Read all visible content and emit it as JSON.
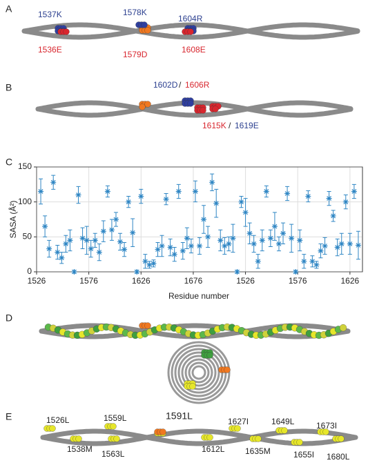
{
  "panel_a": {
    "label": "A",
    "labels": [
      "1537K",
      "1578K",
      "1604R",
      "1536E",
      "1579D",
      "1608E"
    ]
  },
  "panel_b": {
    "label": "B",
    "labels": [
      "1602D",
      "/",
      "1606R",
      "1615K",
      "/",
      "1619E"
    ]
  },
  "chart_data": {
    "type": "scatter",
    "panel_label": "C",
    "x_label": "Residue number",
    "y_label": "SASA (Å²)",
    "xlim": [
      0,
      312
    ],
    "ylim": [
      0,
      150
    ],
    "xticks": [
      {
        "value": 0,
        "label": "1526"
      },
      {
        "value": 50,
        "label": "1576"
      },
      {
        "value": 100,
        "label": "1626"
      },
      {
        "value": 150,
        "label": "1676"
      },
      {
        "value": 200,
        "label": "1526"
      },
      {
        "value": 250,
        "label": "1576"
      },
      {
        "value": 300,
        "label": "1626"
      }
    ],
    "yticks": [
      0,
      50,
      100,
      150
    ],
    "grid": true,
    "series": [
      {
        "color": "#2f86c4",
        "x": [
          4,
          8,
          12,
          16,
          20,
          24,
          28,
          32,
          36,
          40,
          44,
          48,
          52,
          56,
          60,
          64,
          68,
          72,
          76,
          80,
          84,
          88,
          92,
          96,
          100,
          104,
          108,
          112,
          116,
          120,
          124,
          128,
          132,
          136,
          140,
          144,
          148,
          152,
          156,
          160,
          164,
          168,
          172,
          176,
          180,
          184,
          188,
          192,
          196,
          200,
          204,
          208,
          212,
          216,
          220,
          224,
          228,
          232,
          236,
          240,
          244,
          248,
          252,
          256,
          260,
          264,
          268,
          272,
          276,
          280,
          284,
          288,
          292,
          296,
          300,
          304,
          308
        ],
        "values": [
          115,
          65,
          33,
          128,
          28,
          20,
          40,
          45,
          0,
          110,
          48,
          45,
          33,
          45,
          28,
          58,
          115,
          60,
          75,
          43,
          32,
          100,
          56,
          0,
          108,
          15,
          10,
          12,
          32,
          37,
          104,
          35,
          25,
          115,
          30,
          48,
          37,
          115,
          37,
          75,
          50,
          128,
          98,
          45,
          37,
          40,
          48,
          0,
          100,
          85,
          55,
          40,
          15,
          45,
          115,
          48,
          65,
          40,
          55,
          112,
          48,
          0,
          45,
          15,
          108,
          15,
          10,
          30,
          37,
          105,
          80,
          35,
          40,
          100,
          40,
          115,
          38
        ],
        "errors": [
          18,
          15,
          12,
          10,
          10,
          8,
          12,
          15,
          2,
          12,
          15,
          20,
          12,
          10,
          12,
          15,
          8,
          15,
          10,
          12,
          10,
          8,
          20,
          2,
          10,
          10,
          5,
          5,
          10,
          15,
          8,
          12,
          10,
          10,
          12,
          15,
          10,
          15,
          12,
          20,
          15,
          12,
          20,
          15,
          12,
          10,
          20,
          2,
          8,
          20,
          15,
          12,
          10,
          15,
          8,
          12,
          20,
          10,
          15,
          10,
          20,
          2,
          15,
          10,
          8,
          8,
          5,
          10,
          12,
          10,
          8,
          12,
          15,
          10,
          15,
          10,
          20
        ]
      }
    ]
  },
  "panel_d": {
    "label": "D"
  },
  "panel_e": {
    "label": "E",
    "labels": [
      "1526L",
      "1559L",
      "1591L",
      "1627I",
      "1649L",
      "1673I",
      "1538M",
      "1563L",
      "1612L",
      "1635M",
      "1655I",
      "1680L"
    ]
  }
}
